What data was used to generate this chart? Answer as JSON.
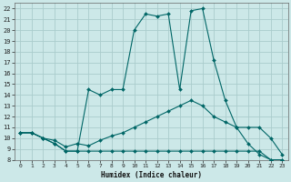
{
  "xlabel": "Humidex (Indice chaleur)",
  "ylabel": "",
  "bg_color": "#cce8e8",
  "grid_color": "#aacccc",
  "line_color": "#006666",
  "xlim": [
    -0.5,
    23.5
  ],
  "ylim": [
    8,
    22.5
  ],
  "xticks": [
    0,
    1,
    2,
    3,
    4,
    5,
    6,
    7,
    8,
    9,
    10,
    11,
    12,
    13,
    14,
    15,
    16,
    17,
    18,
    19,
    20,
    21,
    22,
    23
  ],
  "yticks": [
    8,
    9,
    10,
    11,
    12,
    13,
    14,
    15,
    16,
    17,
    18,
    19,
    20,
    21,
    22
  ],
  "line_top_x": [
    0,
    1,
    2,
    3,
    4,
    5,
    6,
    7,
    8,
    9,
    10,
    11,
    12,
    13,
    14,
    15,
    16,
    17,
    18,
    19,
    20,
    21,
    22,
    23
  ],
  "line_top_y": [
    10.5,
    10.5,
    10.0,
    9.5,
    8.8,
    8.8,
    14.5,
    14.0,
    14.5,
    14.5,
    20.0,
    21.5,
    21.3,
    21.5,
    14.5,
    21.8,
    22.0,
    17.2,
    13.5,
    11.0,
    9.5,
    8.5,
    8.0,
    8.0
  ],
  "line_mid_x": [
    0,
    1,
    2,
    3,
    4,
    5,
    6,
    7,
    8,
    9,
    10,
    11,
    12,
    13,
    14,
    15,
    16,
    17,
    18,
    19,
    20,
    21,
    22,
    23
  ],
  "line_mid_y": [
    10.5,
    10.5,
    10.0,
    9.8,
    9.2,
    9.5,
    9.3,
    9.8,
    10.2,
    10.5,
    11.0,
    11.5,
    12.0,
    12.5,
    13.0,
    13.5,
    13.0,
    12.0,
    11.5,
    11.0,
    11.0,
    11.0,
    10.0,
    8.5
  ],
  "line_bot_x": [
    0,
    1,
    2,
    3,
    4,
    5,
    6,
    7,
    8,
    9,
    10,
    11,
    12,
    13,
    14,
    15,
    16,
    17,
    18,
    19,
    20,
    21,
    22,
    23
  ],
  "line_bot_y": [
    10.5,
    10.5,
    10.0,
    9.5,
    8.8,
    8.8,
    8.8,
    8.8,
    8.8,
    8.8,
    8.8,
    8.8,
    8.8,
    8.8,
    8.8,
    8.8,
    8.8,
    8.8,
    8.8,
    8.8,
    8.8,
    8.8,
    8.0,
    8.0
  ]
}
